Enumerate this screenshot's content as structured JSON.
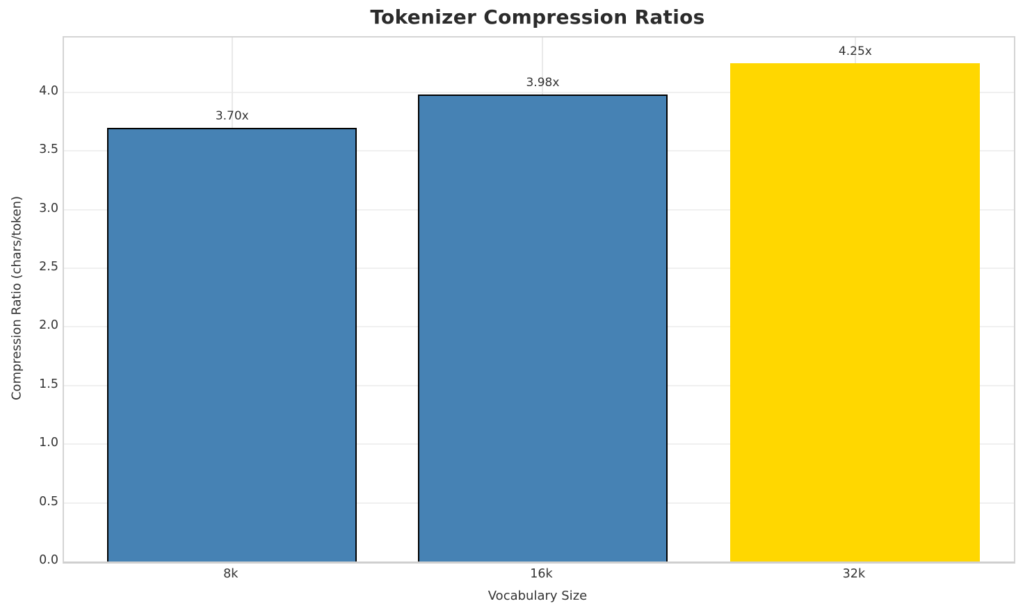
{
  "chart_data": {
    "type": "bar",
    "title": "Tokenizer Compression Ratios",
    "xlabel": "Vocabulary Size",
    "ylabel": "Compression Ratio (chars/token)",
    "categories": [
      "8k",
      "16k",
      "32k"
    ],
    "values": [
      3.7,
      3.98,
      4.25
    ],
    "value_labels": [
      "3.70x",
      "3.98x",
      "4.25x"
    ],
    "bar_colors": [
      "#4682B4",
      "#4682B4",
      "#FFD700"
    ],
    "bar_edge_colors": [
      "#000000",
      "#000000",
      "none"
    ],
    "ylim": [
      0,
      4.468
    ],
    "yticks": [
      0.0,
      0.5,
      1.0,
      1.5,
      2.0,
      2.5,
      3.0,
      3.5,
      4.0
    ],
    "ytick_labels": [
      "0.0",
      "0.5",
      "1.0",
      "1.5",
      "2.0",
      "2.5",
      "3.0",
      "3.5",
      "4.0"
    ],
    "grid": true,
    "legend": "none",
    "colors": {
      "bar_blue": "#4682B4",
      "bar_highlight_gold": "#FFD700",
      "bar_edge": "#000000",
      "grid_h": "#f0f0f0",
      "grid_v": "#e9e9e9",
      "spine": "#d4d4d4",
      "text": "#333333",
      "title_text": "#2b2b2b",
      "background": "#ffffff"
    }
  }
}
